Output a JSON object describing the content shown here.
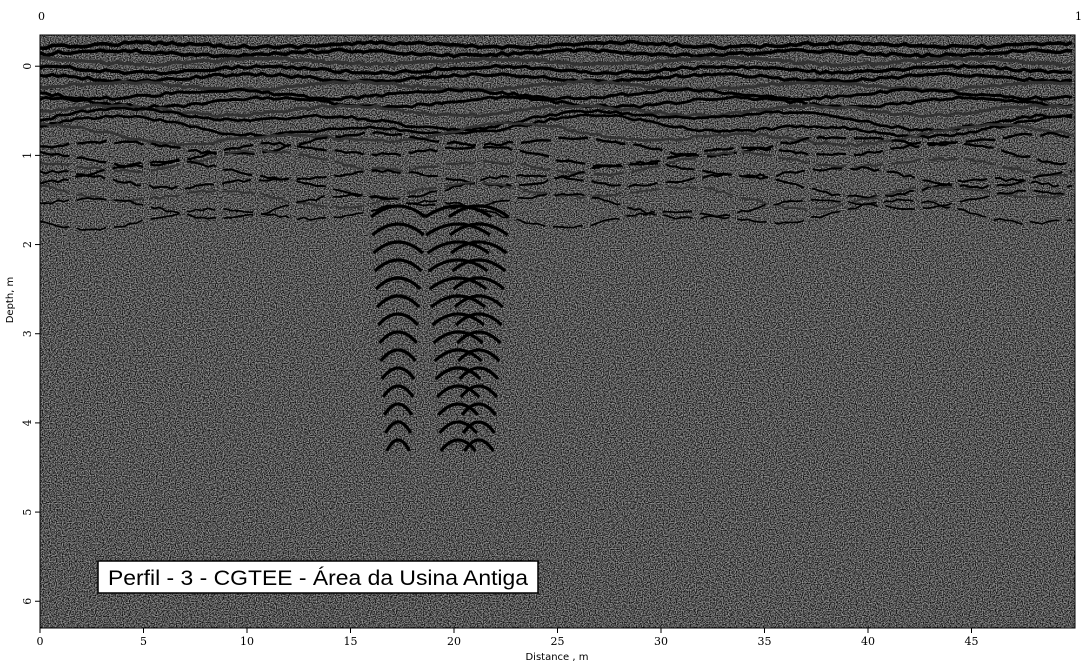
{
  "chart_data": {
    "type": "radargram",
    "title": "Perfil - 3 - CGTEE - Área da Usina Antiga",
    "xlabel": "Distance , m",
    "ylabel": "Depth, m",
    "corner_labels": [
      "0",
      "1"
    ],
    "xlim": [
      0,
      50
    ],
    "xticks": [
      0,
      5,
      10,
      15,
      20,
      25,
      30,
      35,
      40,
      45
    ],
    "ylim": [
      6.3,
      -0.35
    ],
    "yticks": [
      0,
      1,
      2,
      3,
      4,
      5,
      6
    ]
  }
}
